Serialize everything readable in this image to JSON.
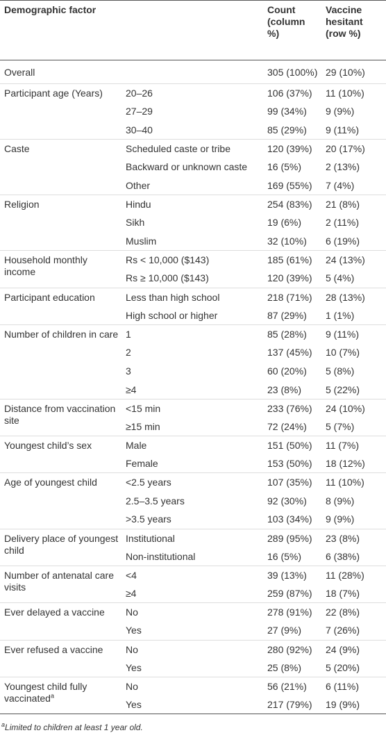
{
  "table": {
    "header": [
      "Demographic factor",
      "Count (column %)",
      "Vaccine hesitant (row %)"
    ],
    "groups": [
      {
        "factor": "Overall",
        "rows": [
          {
            "count": "305 (100%)",
            "hesitant": "29 (10%)"
          }
        ]
      },
      {
        "factor": "Participant age (Years)",
        "rows": [
          {
            "level": "20–26",
            "count": "106 (37%)",
            "hesitant": "11 (10%)"
          },
          {
            "level": "27–29",
            "count": "99 (34%)",
            "hesitant": "9 (9%)"
          },
          {
            "level": "30–40",
            "count": "85 (29%)",
            "hesitant": "9 (11%)"
          }
        ]
      },
      {
        "factor": "Caste",
        "rows": [
          {
            "level": "Scheduled caste or tribe",
            "count": "120 (39%)",
            "hesitant": "20 (17%)"
          },
          {
            "level": "Backward or unknown caste",
            "count": "16 (5%)",
            "hesitant": "2 (13%)"
          },
          {
            "level": "Other",
            "count": "169 (55%)",
            "hesitant": "7 (4%)"
          }
        ]
      },
      {
        "factor": "Religion",
        "rows": [
          {
            "level": "Hindu",
            "count": "254 (83%)",
            "hesitant": "21 (8%)"
          },
          {
            "level": "Sikh",
            "count": "19 (6%)",
            "hesitant": "2 (11%)"
          },
          {
            "level": "Muslim",
            "count": "32 (10%)",
            "hesitant": "6 (19%)"
          }
        ]
      },
      {
        "factor": "Household monthly income",
        "rows": [
          {
            "level": "Rs < 10,000 ($143)",
            "count": "185 (61%)",
            "hesitant": "24 (13%)"
          },
          {
            "level": "Rs ≥ 10,000 ($143)",
            "count": "120 (39%)",
            "hesitant": "5 (4%)"
          }
        ]
      },
      {
        "factor": "Participant education",
        "rows": [
          {
            "level": "Less than high school",
            "count": "218 (71%)",
            "hesitant": "28 (13%)"
          },
          {
            "level": "High school or higher",
            "count": "87 (29%)",
            "hesitant": "1 (1%)"
          }
        ]
      },
      {
        "factor": "Number of children in care",
        "rows": [
          {
            "level": "1",
            "count": "85 (28%)",
            "hesitant": "9 (11%)"
          },
          {
            "level": "2",
            "count": "137 (45%)",
            "hesitant": "10 (7%)"
          },
          {
            "level": "3",
            "count": "60 (20%)",
            "hesitant": "5 (8%)"
          },
          {
            "level": "≥4",
            "count": "23 (8%)",
            "hesitant": "5 (22%)"
          }
        ]
      },
      {
        "factor": "Distance from vaccination site",
        "rows": [
          {
            "level": "<15 min",
            "count": "233 (76%)",
            "hesitant": "24 (10%)"
          },
          {
            "level": "≥15 min",
            "count": "72 (24%)",
            "hesitant": "5 (7%)"
          }
        ]
      },
      {
        "factor": "Youngest child’s sex",
        "rows": [
          {
            "level": "Male",
            "count": "151 (50%)",
            "hesitant": "11 (7%)"
          },
          {
            "level": "Female",
            "count": "153 (50%)",
            "hesitant": "18 (12%)"
          }
        ]
      },
      {
        "factor": "Age of youngest child",
        "rows": [
          {
            "level": "<2.5 years",
            "count": "107 (35%)",
            "hesitant": "11 (10%)"
          },
          {
            "level": "2.5–3.5 years",
            "count": "92 (30%)",
            "hesitant": "8 (9%)"
          },
          {
            "level": ">3.5 years",
            "count": "103 (34%)",
            "hesitant": "9 (9%)"
          }
        ]
      },
      {
        "factor": "Delivery place of youngest child",
        "rows": [
          {
            "level": "Institutional",
            "count": "289 (95%)",
            "hesitant": "23 (8%)"
          },
          {
            "level": "Non-institutional",
            "count": "16 (5%)",
            "hesitant": "6 (38%)"
          }
        ]
      },
      {
        "factor": "Number of antenatal care visits",
        "rows": [
          {
            "level": "<4",
            "count": "39 (13%)",
            "hesitant": "11 (28%)"
          },
          {
            "level": "≥4",
            "count": "259 (87%)",
            "hesitant": "18 (7%)"
          }
        ]
      },
      {
        "factor": "Ever delayed a vaccine",
        "rows": [
          {
            "level": "No",
            "count": "278 (91%)",
            "hesitant": "22 (8%)"
          },
          {
            "level": "Yes",
            "count": "27 (9%)",
            "hesitant": "7 (26%)"
          }
        ]
      },
      {
        "factor": "Ever refused a vaccine",
        "rows": [
          {
            "level": "No",
            "count": "280 (92%)",
            "hesitant": "24 (9%)"
          },
          {
            "level": "Yes",
            "count": "25 (8%)",
            "hesitant": "5 (20%)"
          }
        ]
      },
      {
        "factor": "Youngest child fully vaccinated",
        "marker": "a",
        "rows": [
          {
            "level": "No",
            "count": "56 (21%)",
            "hesitant": "6 (11%)"
          },
          {
            "level": "Yes",
            "count": "217 (79%)",
            "hesitant": "19 (9%)"
          }
        ]
      }
    ],
    "footnote": {
      "marker": "a",
      "text": "Limited to children at least 1 year old."
    }
  }
}
